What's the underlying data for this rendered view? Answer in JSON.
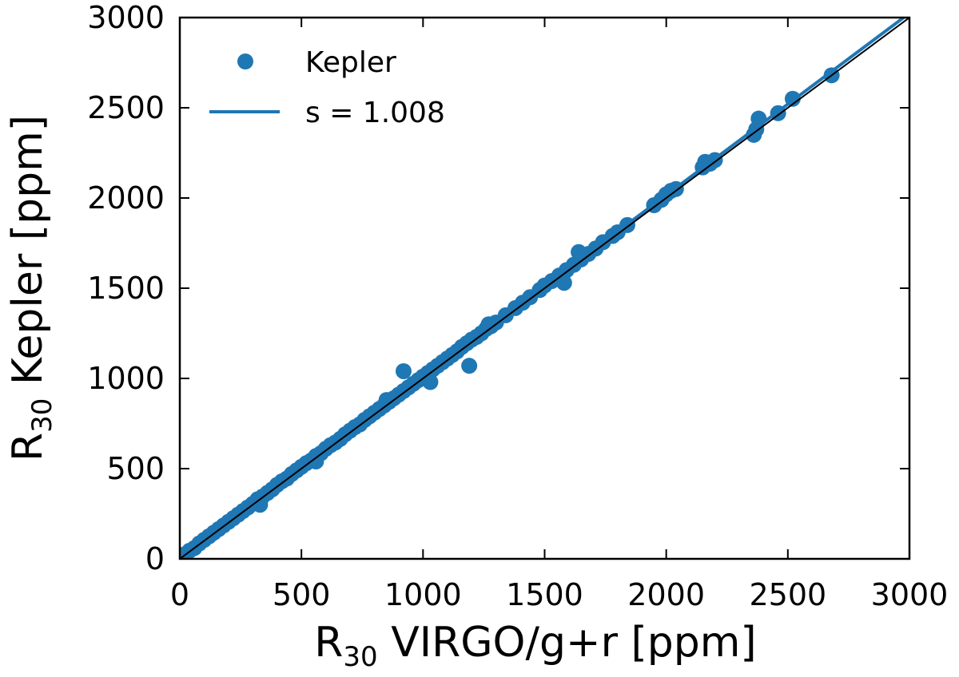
{
  "chart_data": {
    "type": "scatter",
    "xlabel": {
      "main": "R",
      "sub": "30",
      "rest": " VIRGO/g+r [ppm]"
    },
    "ylabel": {
      "main": "R",
      "sub": "30",
      "rest": " Kepler [ppm]"
    },
    "xlim": [
      0,
      3000
    ],
    "ylim": [
      0,
      3000
    ],
    "xticks": [
      "0",
      "500",
      "1000",
      "1500",
      "2000",
      "2500",
      "3000"
    ],
    "yticks": [
      "0",
      "500",
      "1000",
      "1500",
      "2000",
      "2500",
      "3000"
    ],
    "legend": {
      "position": "top-left",
      "entries": [
        "Kepler",
        "s = 1.008"
      ]
    },
    "colors": {
      "points": "#1f77b4",
      "fit": "#1f77b4",
      "identity": "#000000"
    },
    "series": [
      {
        "name": "Kepler",
        "kind": "points",
        "x": [
          20,
          40,
          60,
          80,
          100,
          120,
          140,
          160,
          180,
          200,
          220,
          240,
          260,
          280,
          300,
          320,
          340,
          360,
          380,
          400,
          420,
          440,
          460,
          480,
          500,
          520,
          540,
          560,
          580,
          600,
          620,
          640,
          660,
          680,
          700,
          720,
          740,
          760,
          780,
          800,
          820,
          840,
          860,
          880,
          900,
          920,
          940,
          960,
          980,
          1000,
          1020,
          1040,
          1060,
          1080,
          1100,
          1120,
          1140,
          1160,
          1180,
          1200,
          1220,
          1240,
          1260,
          1280,
          1300,
          1340,
          1380,
          1410,
          1440,
          1480,
          1500,
          1530,
          1560,
          1590,
          1620,
          1650,
          1680,
          1710,
          1740,
          1780,
          1800,
          1840,
          1950,
          1980,
          2000,
          2020,
          2040,
          2150,
          2160,
          2180,
          2200,
          2360,
          2370,
          2380,
          2460,
          2520,
          2680,
          1190,
          1030,
          920,
          560,
          330,
          850,
          1270,
          1580,
          1640
        ],
        "y": [
          25,
          45,
          60,
          85,
          105,
          125,
          145,
          165,
          185,
          205,
          225,
          245,
          265,
          285,
          305,
          330,
          345,
          365,
          385,
          410,
          430,
          445,
          470,
          490,
          510,
          530,
          545,
          570,
          585,
          610,
          630,
          645,
          665,
          690,
          710,
          730,
          745,
          770,
          790,
          810,
          830,
          850,
          870,
          890,
          910,
          930,
          950,
          970,
          990,
          1010,
          1030,
          1050,
          1070,
          1090,
          1110,
          1130,
          1150,
          1175,
          1195,
          1215,
          1230,
          1250,
          1275,
          1290,
          1310,
          1350,
          1390,
          1420,
          1450,
          1490,
          1515,
          1540,
          1570,
          1600,
          1630,
          1660,
          1690,
          1720,
          1755,
          1790,
          1810,
          1850,
          1960,
          1990,
          2020,
          2040,
          2050,
          2170,
          2200,
          2190,
          2210,
          2350,
          2380,
          2440,
          2470,
          2550,
          2680,
          1070,
          980,
          1040,
          540,
          300,
          880,
          1300,
          1530,
          1700
        ]
      },
      {
        "name": "s = 1.008",
        "kind": "line",
        "slope": 1.008
      },
      {
        "name": "identity",
        "kind": "line",
        "slope": 1.0
      }
    ]
  }
}
